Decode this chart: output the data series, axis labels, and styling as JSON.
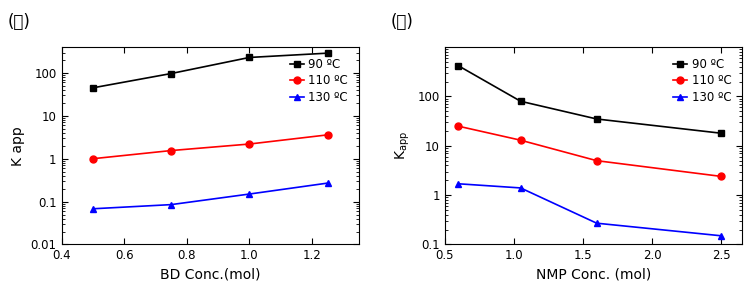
{
  "left": {
    "label": "(가)",
    "xlabel": "BD Conc.(mol)",
    "ylabel": "K app",
    "xlim": [
      0.4,
      1.35
    ],
    "ylim": [
      0.01,
      400
    ],
    "xticks": [
      0.4,
      0.6,
      0.8,
      1.0,
      1.2
    ],
    "yticks": [
      0.01,
      0.1,
      1,
      10,
      100
    ],
    "series": [
      {
        "label": "90 ºC",
        "color": "black",
        "marker": "s",
        "x": [
          0.5,
          0.75,
          1.0,
          1.25
        ],
        "y": [
          45,
          97,
          230,
          290
        ]
      },
      {
        "label": "110 ºC",
        "color": "red",
        "marker": "o",
        "x": [
          0.5,
          0.75,
          1.0,
          1.25
        ],
        "y": [
          1.0,
          1.55,
          2.2,
          3.6
        ]
      },
      {
        "label": "130 ºC",
        "color": "blue",
        "marker": "^",
        "x": [
          0.5,
          0.75,
          1.0,
          1.25
        ],
        "y": [
          0.068,
          0.085,
          0.15,
          0.27
        ]
      }
    ]
  },
  "right": {
    "label": "(나)",
    "xlabel": "NMP Conc. (mol)",
    "ylabel": "K",
    "ylabel_sub": "app",
    "xlim": [
      0.5,
      2.65
    ],
    "ylim": [
      0.1,
      1000
    ],
    "xticks": [
      0.5,
      1.0,
      1.5,
      2.0,
      2.5
    ],
    "yticks": [
      0.1,
      1,
      10,
      100
    ],
    "series": [
      {
        "label": "90 ºC",
        "color": "black",
        "marker": "s",
        "x": [
          0.6,
          1.05,
          1.6,
          2.5
        ],
        "y": [
          420,
          80,
          35,
          18
        ]
      },
      {
        "label": "110 ºC",
        "color": "red",
        "marker": "o",
        "x": [
          0.6,
          1.05,
          1.6,
          2.5
        ],
        "y": [
          25,
          13,
          5.0,
          2.4
        ]
      },
      {
        "label": "130 ºC",
        "color": "blue",
        "marker": "^",
        "x": [
          0.6,
          1.05,
          1.6,
          2.5
        ],
        "y": [
          1.7,
          1.4,
          0.27,
          0.15
        ]
      }
    ]
  },
  "legend_fontsize": 8.5,
  "tick_fontsize": 8.5,
  "label_fontsize": 10,
  "panel_label_fontsize": 12,
  "markersize": 5,
  "linewidth": 1.2
}
